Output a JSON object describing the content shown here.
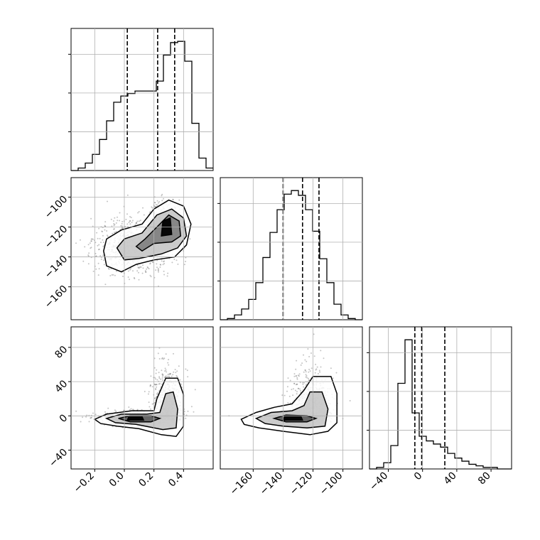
{
  "chart_data": [
    {
      "type": "histogram",
      "panel": "row1-col1",
      "axis": {
        "xlim": [
          -0.36,
          0.6
        ]
      },
      "grid": true,
      "bins": {
        "start": -0.36,
        "width": 0.048
      },
      "counts": [
        0,
        2,
        6,
        13,
        25,
        40,
        55,
        60,
        62,
        64,
        64,
        64,
        72,
        93,
        103,
        104,
        88,
        38,
        10,
        2
      ],
      "y_ticks_unlabeled": 3,
      "quantiles": [
        0.02,
        0.225,
        0.34
      ]
    },
    {
      "type": "histogram",
      "panel": "row2-col2",
      "axis": {
        "xlim": [
          -182,
          -87
        ]
      },
      "grid": true,
      "bins": {
        "start": -182,
        "width": 4.75
      },
      "counts": [
        0,
        1,
        4,
        9,
        17,
        31,
        52,
        73,
        92,
        105,
        108,
        104,
        92,
        74,
        51,
        31,
        13,
        4,
        1,
        0
      ],
      "y_ticks_unlabeled": 3,
      "quantiles": [
        -140,
        -127,
        -116
      ]
    },
    {
      "type": "histogram",
      "panel": "row3-col3",
      "axis": {
        "xlim": [
          -62,
          104
        ]
      },
      "grid": true,
      "bins": {
        "start": -62,
        "width": 8.3
      },
      "counts": [
        0,
        1,
        4,
        15,
        55,
        83,
        36,
        21,
        18,
        16,
        14,
        10,
        7,
        5,
        3,
        2,
        1,
        1,
        0,
        0
      ],
      "y_ticks_unlabeled": 3,
      "quantiles": [
        -9,
        -1,
        26
      ]
    },
    {
      "type": "scatter-density",
      "panel": "row2-col1",
      "x_variable": "column-1",
      "y_variable": "row-2",
      "xlim": [
        -0.36,
        0.6
      ],
      "ylim": [
        -182,
        -87
      ],
      "grid": true,
      "y_ticks": [
        -100,
        -120,
        -140,
        -160
      ],
      "peak": [
        0.28,
        -122
      ]
    },
    {
      "type": "scatter-density",
      "panel": "row3-col1",
      "x_variable": "column-1",
      "y_variable": "row-3",
      "xlim": [
        -0.36,
        0.6
      ],
      "ylim": [
        -62,
        104
      ],
      "grid": true,
      "x_ticks": [
        "−0.2",
        "0.0",
        "0.2",
        "0.4"
      ],
      "y_ticks": [
        80,
        40,
        0,
        -40
      ],
      "peak": [
        0.07,
        -3
      ]
    },
    {
      "type": "scatter-density",
      "panel": "row3-col2",
      "x_variable": "column-2",
      "y_variable": "row-3",
      "xlim": [
        -182,
        -87
      ],
      "ylim": [
        -62,
        104
      ],
      "grid": true,
      "x_ticks": [
        "−160",
        "−140",
        "−120",
        "−100"
      ],
      "peak": [
        -133,
        -3
      ]
    },
    {
      "type": "axis-ticks",
      "panel": "row3-col3",
      "x_ticks": [
        "−40",
        "0",
        "40",
        "80"
      ]
    }
  ],
  "labels": {
    "y_row2": [
      "−100",
      "−120",
      "−140",
      "−160"
    ],
    "y_row3": [
      "80",
      "40",
      "0",
      "−40"
    ],
    "x_col1": [
      "−0.2",
      "0.0",
      "0.2",
      "0.4"
    ],
    "x_col2": [
      "−160",
      "−140",
      "−120",
      "−100"
    ],
    "x_col3": [
      "−40",
      "0",
      "40",
      "80"
    ]
  },
  "colors": {
    "line": "#000000",
    "grid": "#b0b0b0",
    "points": "#555555",
    "background": "#ffffff"
  }
}
